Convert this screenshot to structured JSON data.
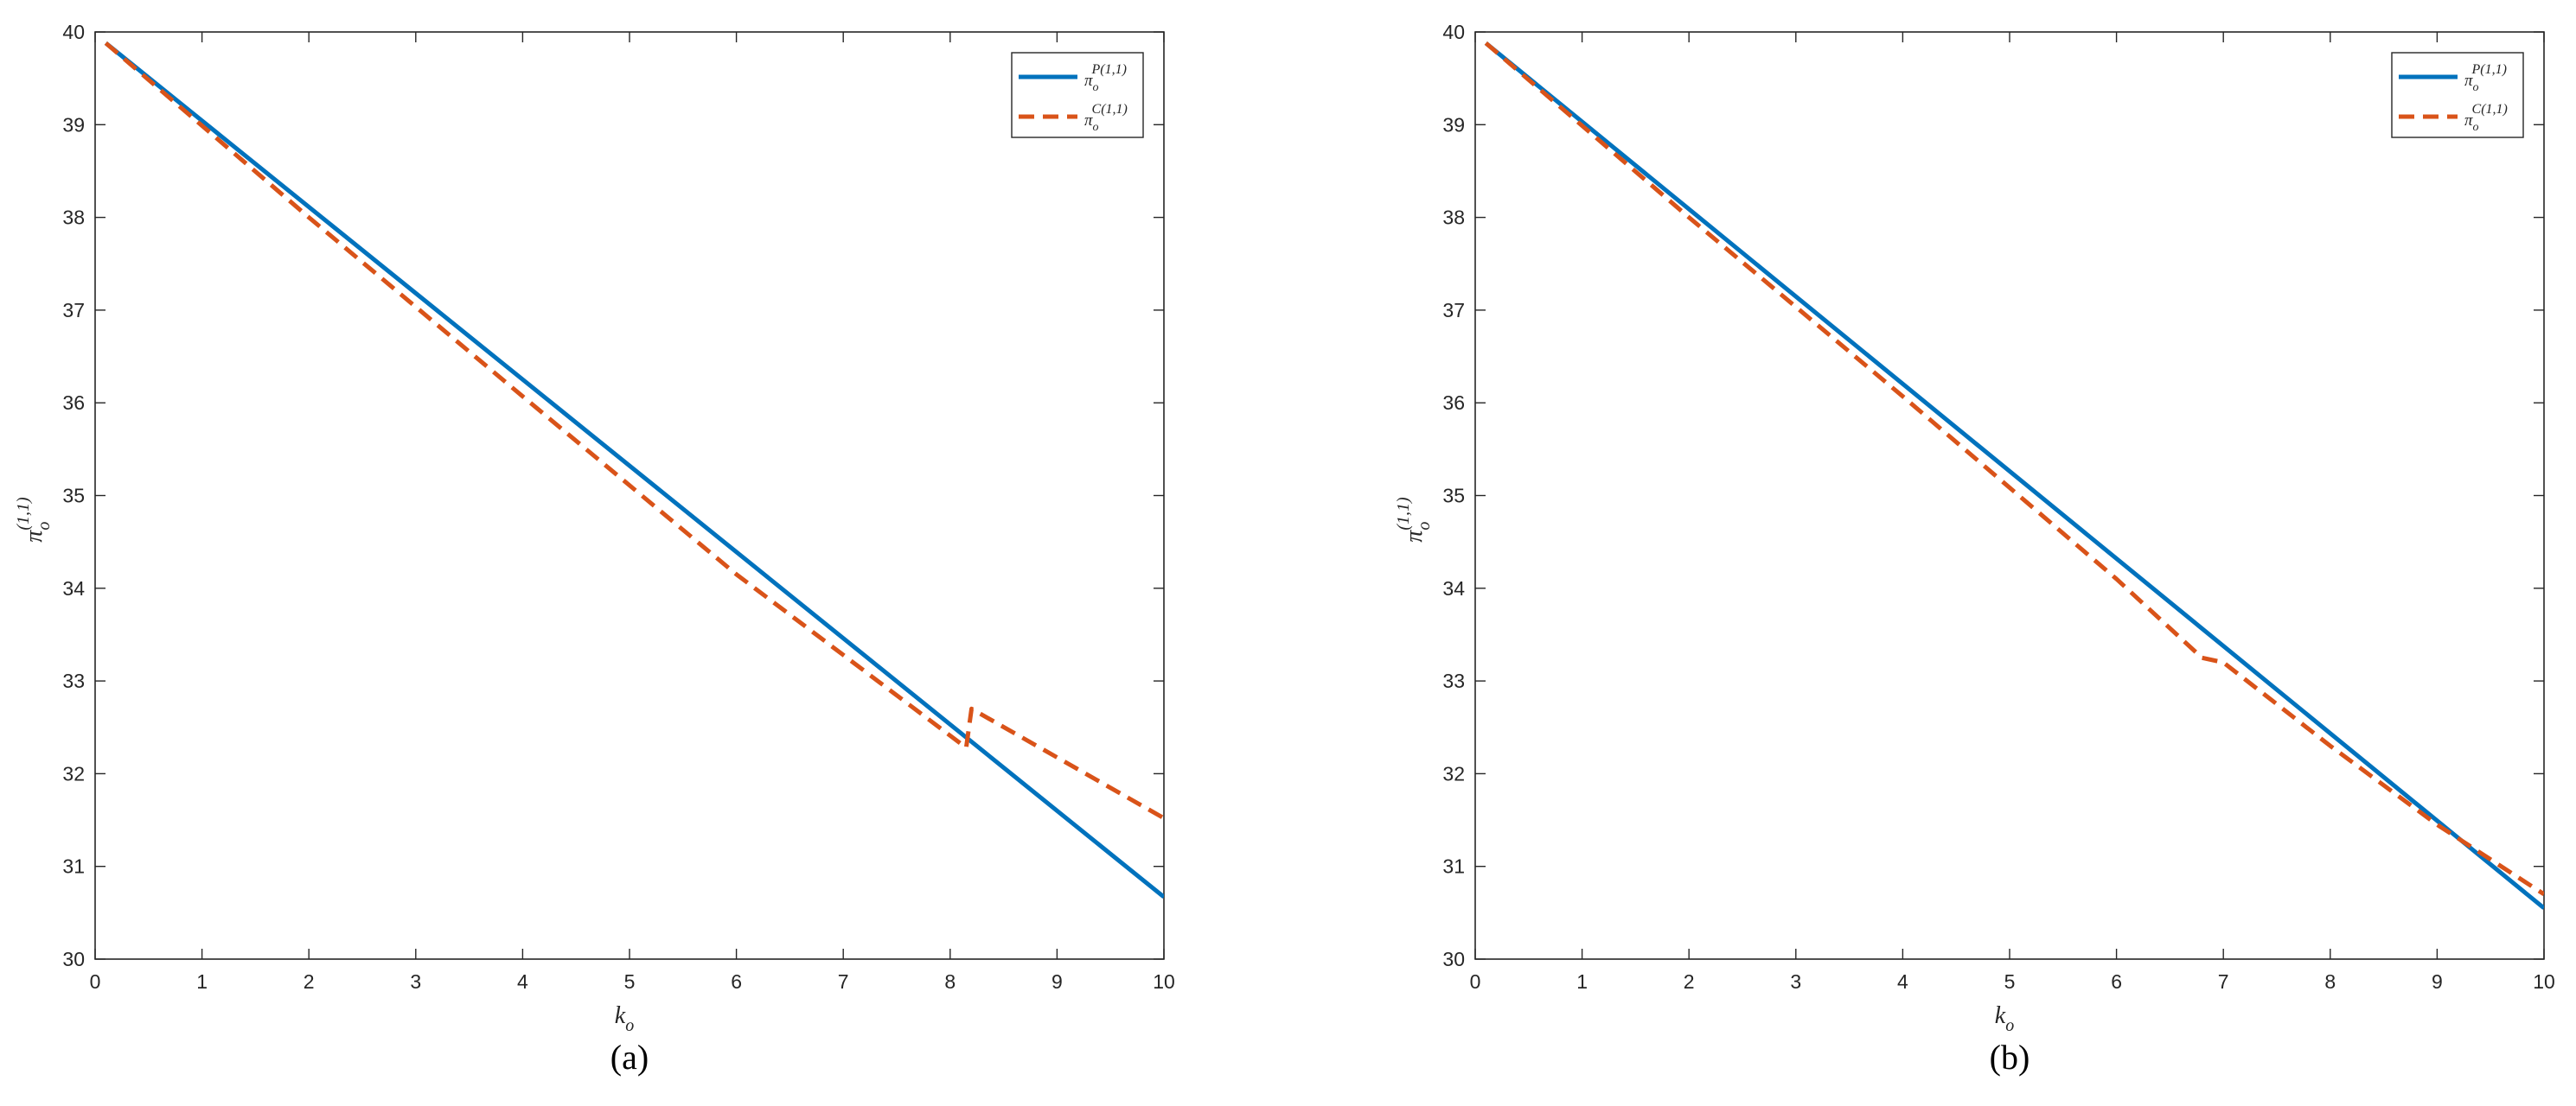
{
  "chart_data": [
    {
      "type": "line",
      "caption": "(a)",
      "xlabel": "k",
      "xlabel_sub": "o",
      "ylabel": "π",
      "ylabel_sub": "o",
      "ylabel_sup": "(1,1)",
      "xlim": [
        0,
        10
      ],
      "ylim": [
        30,
        40
      ],
      "x_ticks": [
        "0",
        "1",
        "2",
        "3",
        "4",
        "5",
        "6",
        "7",
        "8",
        "9",
        "10"
      ],
      "y_ticks": [
        "30",
        "31",
        "32",
        "33",
        "34",
        "35",
        "36",
        "37",
        "38",
        "39",
        "40"
      ],
      "grid": false,
      "legend_position": "top-right",
      "series": [
        {
          "name": "π_o^P(1,1)",
          "legend_base": "π",
          "legend_sub": "o",
          "legend_sup": "P(1,1)",
          "color": "#0072BD",
          "style": "solid",
          "points": [
            [
              0.1,
              39.88
            ],
            [
              10,
              30.67
            ]
          ]
        },
        {
          "name": "π_o^C(1,1)",
          "legend_base": "π",
          "legend_sub": "o",
          "legend_sup": "C(1,1)",
          "color": "#D95319",
          "style": "dashed",
          "points": [
            [
              0.1,
              39.88
            ],
            [
              2,
              38.0
            ],
            [
              4,
              36.07
            ],
            [
              6,
              34.15
            ],
            [
              8.15,
              32.28
            ],
            [
              8.2,
              32.7
            ],
            [
              10,
              31.52
            ]
          ]
        }
      ]
    },
    {
      "type": "line",
      "caption": "(b)",
      "xlabel": "k",
      "xlabel_sub": "o",
      "ylabel": "π",
      "ylabel_sub": "o",
      "ylabel_sup": "(1,1)",
      "xlim": [
        0,
        10
      ],
      "ylim": [
        30,
        40
      ],
      "x_ticks": [
        "0",
        "1",
        "2",
        "3",
        "4",
        "5",
        "6",
        "7",
        "8",
        "9",
        "10"
      ],
      "y_ticks": [
        "30",
        "31",
        "32",
        "33",
        "34",
        "35",
        "36",
        "37",
        "38",
        "39",
        "40"
      ],
      "grid": false,
      "legend_position": "top-right",
      "series": [
        {
          "name": "π_o^P(1,1)",
          "legend_base": "π",
          "legend_sub": "o",
          "legend_sup": "P(1,1)",
          "color": "#0072BD",
          "style": "solid",
          "points": [
            [
              0.1,
              39.88
            ],
            [
              10,
              30.55
            ]
          ]
        },
        {
          "name": "π_o^C(1,1)",
          "legend_base": "π",
          "legend_sub": "o",
          "legend_sup": "C(1,1)",
          "color": "#D95319",
          "style": "dashed",
          "points": [
            [
              0.1,
              39.88
            ],
            [
              2,
              38.0
            ],
            [
              4,
              36.07
            ],
            [
              6,
              34.1
            ],
            [
              6.8,
              33.25
            ],
            [
              7.0,
              33.2
            ],
            [
              7.5,
              32.75
            ],
            [
              8,
              32.3
            ],
            [
              9,
              31.45
            ],
            [
              10,
              30.7
            ]
          ]
        }
      ]
    }
  ]
}
